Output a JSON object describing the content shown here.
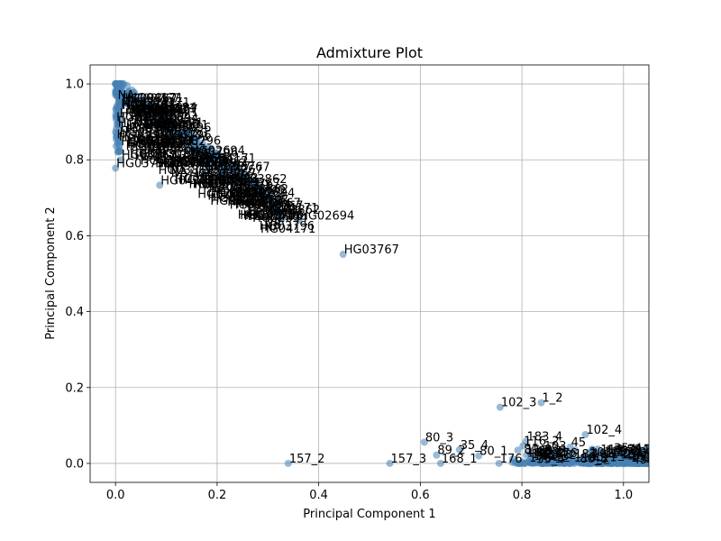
{
  "chart_data": {
    "type": "scatter",
    "title": "Admixture Plot",
    "xlabel": "Principal Component 1",
    "ylabel": "Principal Component 2",
    "xlim": [
      -0.05,
      1.05
    ],
    "ylim": [
      -0.05,
      1.05
    ],
    "xticks": [
      0.0,
      0.2,
      0.4,
      0.6,
      0.8,
      1.0
    ],
    "yticks": [
      0.0,
      0.2,
      0.4,
      0.6,
      0.8,
      1.0
    ],
    "xtick_labels": [
      "0.0",
      "0.2",
      "0.4",
      "0.6",
      "0.8",
      "1.0"
    ],
    "ytick_labels": [
      "0.0",
      "0.2",
      "0.4",
      "0.6",
      "0.8",
      "1.0"
    ],
    "grid": true,
    "point_color": "#4682b4",
    "labeled_points": [
      {
        "label": "HG03796",
        "x": 0.0,
        "y": 0.778
      },
      {
        "label": "HG03862",
        "x": 0.01,
        "y": 0.8
      },
      {
        "label": "HG04171",
        "x": 0.087,
        "y": 0.733
      },
      {
        "label": "HG02694",
        "x": 0.36,
        "y": 0.64
      },
      {
        "label": "HG03767",
        "x": 0.448,
        "y": 0.551
      },
      {
        "label": "NA",
        "x": 0.27,
        "y": 0.698
      },
      {
        "label": "HG03",
        "x": 0.175,
        "y": 0.768
      },
      {
        "label": "1_2",
        "x": 0.838,
        "y": 0.16
      },
      {
        "label": "102_3",
        "x": 0.757,
        "y": 0.148
      },
      {
        "label": "102_4",
        "x": 0.925,
        "y": 0.076
      },
      {
        "label": "183_4",
        "x": 0.808,
        "y": 0.058
      },
      {
        "label": "80_3",
        "x": 0.608,
        "y": 0.056
      },
      {
        "label": "116_2",
        "x": 0.802,
        "y": 0.046
      },
      {
        "label": "35_4",
        "x": 0.677,
        "y": 0.036
      },
      {
        "label": "45",
        "x": 0.895,
        "y": 0.043
      },
      {
        "label": "103",
        "x": 0.842,
        "y": 0.033
      },
      {
        "label": "89_2",
        "x": 0.632,
        "y": 0.022
      },
      {
        "label": "80_1",
        "x": 0.715,
        "y": 0.02
      },
      {
        "label": "157_2",
        "x": 0.34,
        "y": 0.0
      },
      {
        "label": "157_3",
        "x": 0.54,
        "y": 0.0
      },
      {
        "label": "168_1",
        "x": 0.64,
        "y": 0.0
      },
      {
        "label": "176",
        "x": 0.755,
        "y": 0.0
      }
    ]
  }
}
